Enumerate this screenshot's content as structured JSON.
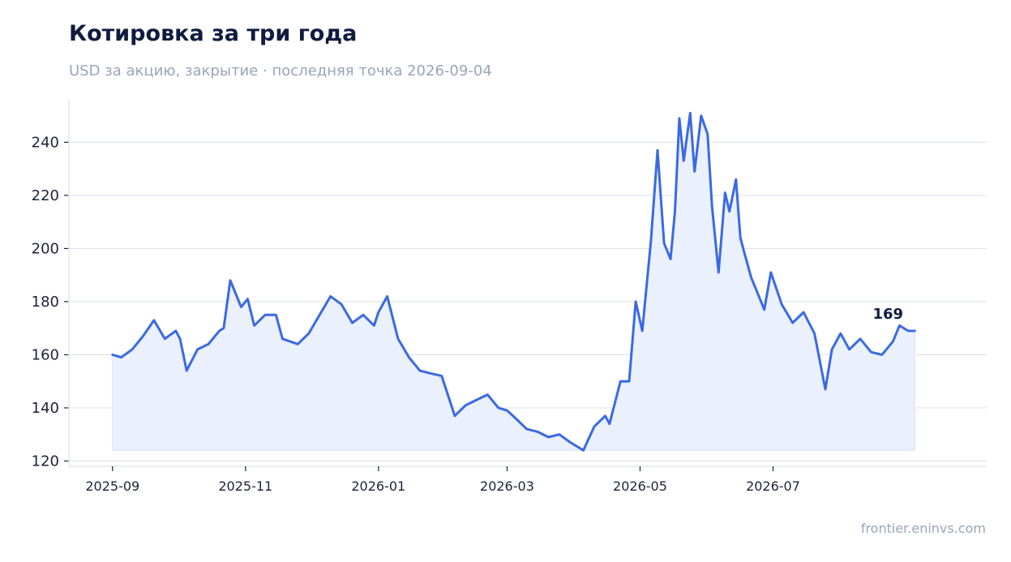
{
  "header": {
    "title": "Котировка за три года",
    "subtitle": "USD за акцию, закрытие · последняя точка 2026-09-04"
  },
  "footer": {
    "source": "frontier.eninvs.com"
  },
  "colors": {
    "line": "#3a6ae3",
    "area": "#eaf0fc",
    "title": "#0f1c3f",
    "muted": "#97a6b9"
  },
  "chart_data": {
    "type": "area",
    "title": "Котировка за три года",
    "subtitle": "USD за акцию, закрытие · последняя точка 2026-09-04",
    "xlabel": "",
    "ylabel": "",
    "grid": true,
    "legend": "none",
    "ylim": [
      118,
      256
    ],
    "y_ticks": [
      120,
      140,
      160,
      180,
      200,
      220,
      240
    ],
    "x_ticks": [
      "2025-09",
      "2025-11",
      "2026-01",
      "2026-03",
      "2026-05",
      "2026-07"
    ],
    "x_tick_dates": [
      "2025-09-01",
      "2025-11-01",
      "2026-01-01",
      "2026-03-01",
      "2026-05-01",
      "2026-07-01"
    ],
    "xlim": [
      "2025-08-12",
      "2026-10-07"
    ],
    "baseline": 124,
    "last_value_label": "169",
    "series": [
      {
        "x": [
          "2025-09-01",
          "2025-09-05",
          "2025-09-10",
          "2025-09-15",
          "2025-09-20",
          "2025-09-25",
          "2025-09-30",
          "2025-10-02",
          "2025-10-05",
          "2025-10-10",
          "2025-10-15",
          "2025-10-20",
          "2025-10-22",
          "2025-10-25",
          "2025-10-30",
          "2025-11-02",
          "2025-11-05",
          "2025-11-10",
          "2025-11-15",
          "2025-11-18",
          "2025-11-25",
          "2025-11-30",
          "2025-12-05",
          "2025-12-10",
          "2025-12-15",
          "2025-12-20",
          "2025-12-25",
          "2025-12-30",
          "2026-01-01",
          "2026-01-05",
          "2026-01-10",
          "2026-01-15",
          "2026-01-20",
          "2026-01-25",
          "2026-01-30",
          "2026-02-01",
          "2026-02-05",
          "2026-02-10",
          "2026-02-15",
          "2026-02-20",
          "2026-02-25",
          "2026-03-01",
          "2026-03-05",
          "2026-03-10",
          "2026-03-15",
          "2026-03-20",
          "2026-03-25",
          "2026-03-30",
          "2026-04-05",
          "2026-04-10",
          "2026-04-15",
          "2026-04-17",
          "2026-04-22",
          "2026-04-26",
          "2026-04-29",
          "2026-05-02",
          "2026-05-06",
          "2026-05-09",
          "2026-05-12",
          "2026-05-15",
          "2026-05-17",
          "2026-05-19",
          "2026-05-21",
          "2026-05-24",
          "2026-05-26",
          "2026-05-29",
          "2026-06-01",
          "2026-06-03",
          "2026-06-06",
          "2026-06-09",
          "2026-06-11",
          "2026-06-14",
          "2026-06-16",
          "2026-06-18",
          "2026-06-21",
          "2026-06-24",
          "2026-06-27",
          "2026-06-30",
          "2026-07-05",
          "2026-07-10",
          "2026-07-15",
          "2026-07-20",
          "2026-07-25",
          "2026-07-28",
          "2026-08-01",
          "2026-08-05",
          "2026-08-10",
          "2026-08-15",
          "2026-08-20",
          "2026-08-25",
          "2026-08-28",
          "2026-09-01",
          "2026-09-04"
        ],
        "values": [
          160,
          159,
          162,
          167,
          173,
          166,
          169,
          166,
          154,
          162,
          164,
          169,
          170,
          188,
          178,
          181,
          171,
          175,
          175,
          166,
          164,
          168,
          175,
          182,
          179,
          172,
          175,
          171,
          176,
          182,
          166,
          159,
          154,
          153,
          152,
          147,
          137,
          141,
          143,
          145,
          140,
          139,
          136,
          132,
          131,
          129,
          130,
          127,
          124,
          133,
          137,
          134,
          150,
          150,
          180,
          169,
          203,
          237,
          202,
          196,
          214,
          249,
          233,
          251,
          229,
          250,
          243,
          216,
          191,
          221,
          214,
          226,
          204,
          198,
          189,
          183,
          177,
          191,
          179,
          172,
          176,
          168,
          147,
          162,
          168,
          162,
          166,
          161,
          160,
          165,
          171,
          169,
          169
        ]
      }
    ]
  }
}
